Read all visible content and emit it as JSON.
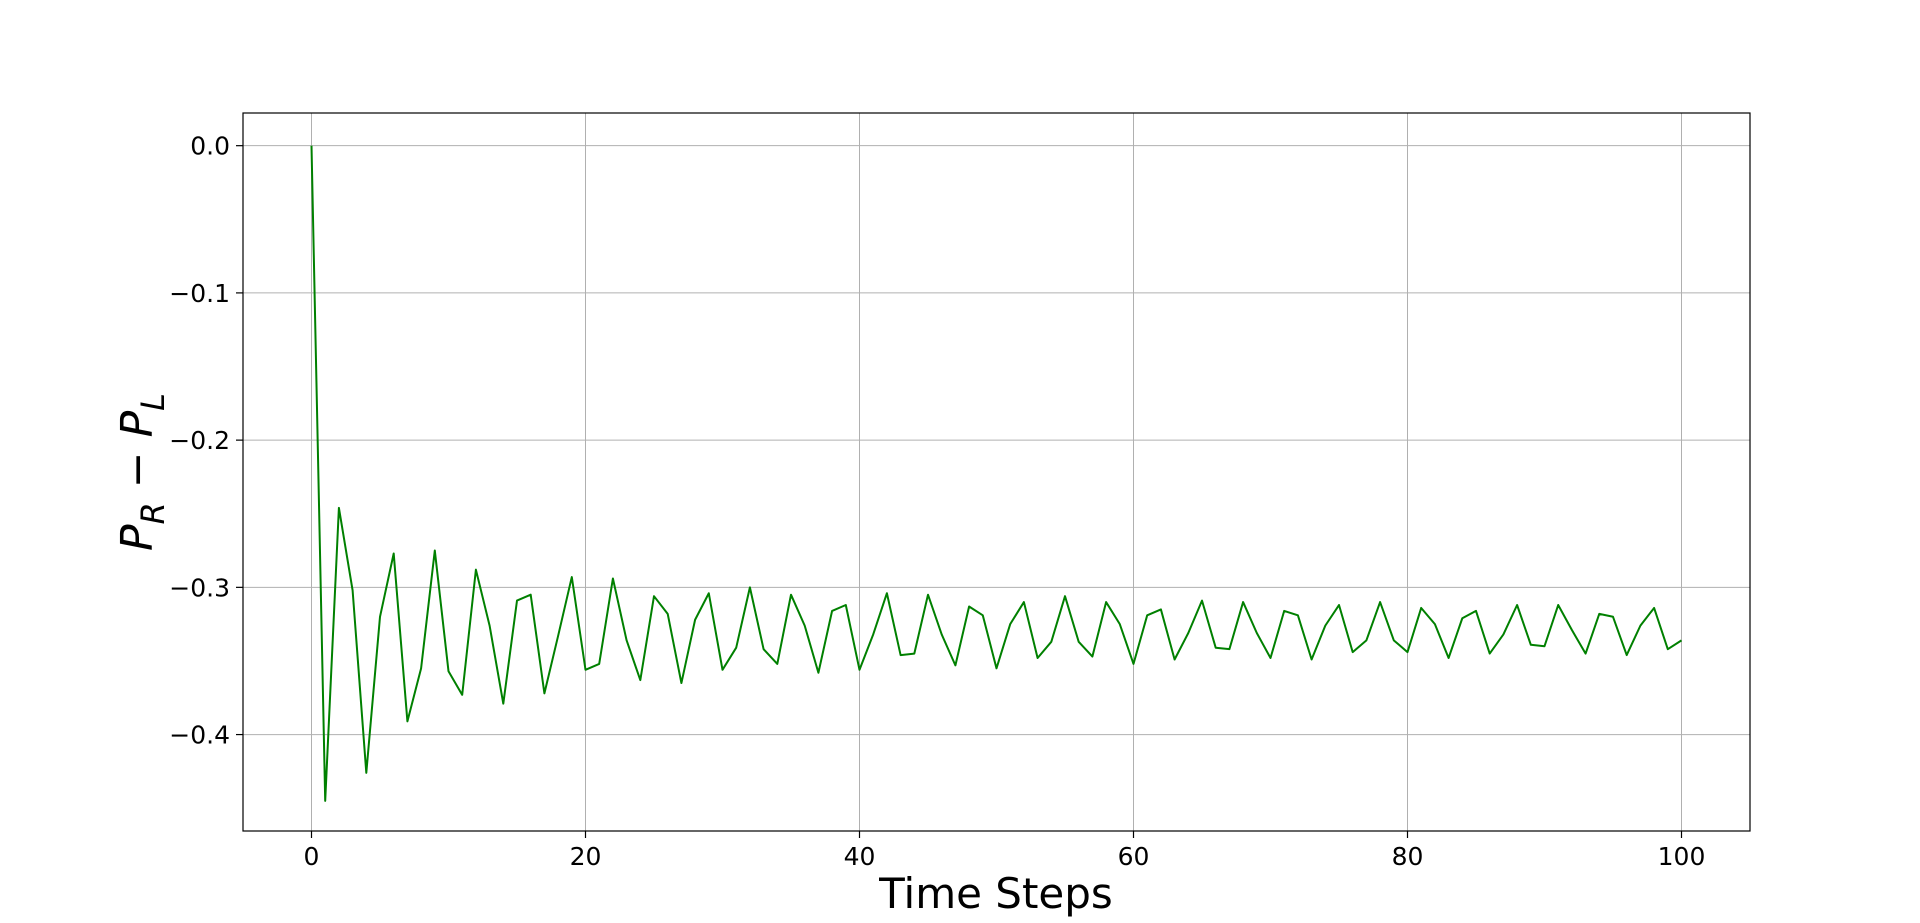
{
  "chart_data": {
    "type": "line",
    "title": "",
    "xlabel": "Time Steps",
    "ylabel": "P_R − P_L",
    "ylabel_parts": {
      "p1": "P",
      "s1": "R",
      "minus": " − ",
      "p2": "P",
      "s2": "L"
    },
    "xlim": [
      -5,
      105
    ],
    "ylim": [
      -0.4655,
      0.0222
    ],
    "x_ticks": [
      0,
      20,
      40,
      60,
      80,
      100
    ],
    "x_tick_labels": [
      "0",
      "20",
      "40",
      "60",
      "80",
      "100"
    ],
    "y_ticks": [
      0.0,
      -0.1,
      -0.2,
      -0.3,
      -0.4
    ],
    "y_tick_labels": [
      "0.0",
      "−0.1",
      "−0.2",
      "−0.3",
      "−0.4"
    ],
    "grid": true,
    "series": [
      {
        "color": "#008000",
        "x": [
          0,
          1,
          2,
          3,
          4,
          5,
          6,
          7,
          8,
          9,
          10,
          11,
          12,
          13,
          14,
          15,
          16,
          17,
          18,
          19,
          20,
          21,
          22,
          23,
          24,
          25,
          26,
          27,
          28,
          29,
          30,
          31,
          32,
          33,
          34,
          35,
          36,
          37,
          38,
          39,
          40,
          41,
          42,
          43,
          44,
          45,
          46,
          47,
          48,
          49,
          50,
          51,
          52,
          53,
          54,
          55,
          56,
          57,
          58,
          59,
          60,
          61,
          62,
          63,
          64,
          65,
          66,
          67,
          68,
          69,
          70,
          71,
          72,
          73,
          74,
          75,
          76,
          77,
          78,
          79,
          80,
          81,
          82,
          83,
          84,
          85,
          86,
          87,
          88,
          89,
          90,
          91,
          92,
          93,
          94,
          95,
          96,
          97,
          98,
          99,
          100
        ],
        "values": [
          0.0,
          -0.445,
          -0.246,
          -0.302,
          -0.426,
          -0.32,
          -0.277,
          -0.391,
          -0.355,
          -0.275,
          -0.357,
          -0.373,
          -0.288,
          -0.326,
          -0.379,
          -0.309,
          -0.305,
          -0.372,
          -0.333,
          -0.293,
          -0.356,
          -0.352,
          -0.294,
          -0.336,
          -0.363,
          -0.306,
          -0.318,
          -0.365,
          -0.322,
          -0.304,
          -0.356,
          -0.341,
          -0.3,
          -0.342,
          -0.352,
          -0.305,
          -0.326,
          -0.358,
          -0.316,
          -0.312,
          -0.356,
          -0.332,
          -0.304,
          -0.346,
          -0.345,
          -0.305,
          -0.332,
          -0.353,
          -0.313,
          -0.319,
          -0.355,
          -0.325,
          -0.31,
          -0.348,
          -0.337,
          -0.306,
          -0.337,
          -0.347,
          -0.31,
          -0.325,
          -0.352,
          -0.319,
          -0.315,
          -0.349,
          -0.331,
          -0.309,
          -0.341,
          -0.342,
          -0.31,
          -0.331,
          -0.348,
          -0.316,
          -0.319,
          -0.349,
          -0.326,
          -0.312,
          -0.344,
          -0.336,
          -0.31,
          -0.336,
          -0.344,
          -0.314,
          -0.325,
          -0.348,
          -0.321,
          -0.316,
          -0.345,
          -0.332,
          -0.312,
          -0.339,
          -0.34,
          -0.312,
          -0.329,
          -0.345,
          -0.318,
          -0.32,
          -0.346,
          -0.326,
          -0.314,
          -0.342,
          -0.336
        ]
      }
    ]
  }
}
